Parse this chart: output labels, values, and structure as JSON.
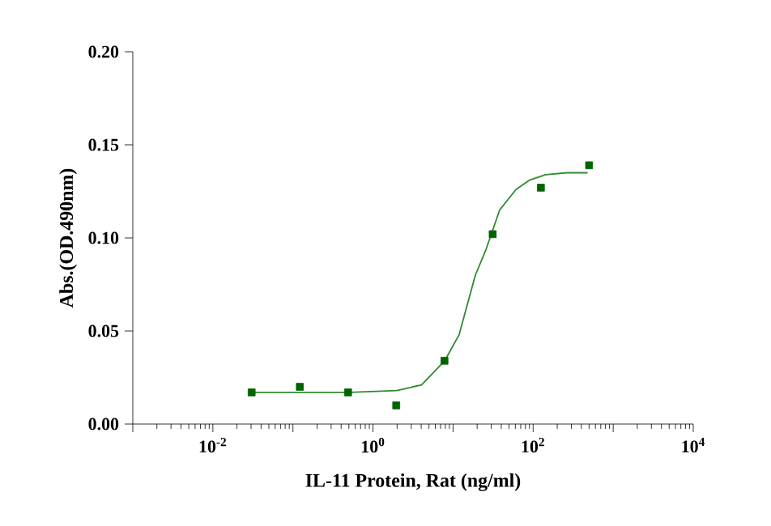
{
  "chart_data": {
    "type": "scatter",
    "xlabel": "IL-11 Protein, Rat  (ng/ml)",
    "ylabel": "Abs.(OD.490nm)",
    "log": "x",
    "marker": "square",
    "xlim": [
      0.001,
      10000
    ],
    "xticks": [
      {
        "value": 0.001,
        "label": null
      },
      {
        "value": 0.01,
        "label": "10$^{-2}$"
      },
      {
        "value": 0.1,
        "label": null
      },
      {
        "value": 1,
        "label": "10$^{0}$"
      },
      {
        "value": 10,
        "label": null
      },
      {
        "value": 100,
        "label": "10$^{2}$"
      },
      {
        "value": 1000,
        "label": null
      },
      {
        "value": 10000,
        "label": "10$^{4}$"
      }
    ],
    "ylim": [
      0,
      0.2
    ],
    "yticks": [
      {
        "value": 0,
        "label": "0.00"
      },
      {
        "value": 0.05,
        "label": "0.05"
      },
      {
        "value": 0.1,
        "label": "0.10"
      },
      {
        "value": 0.15,
        "label": "0.15"
      },
      {
        "value": 0.2,
        "label": "0.20"
      }
    ],
    "series": [
      {
        "color": "#006400",
        "x": [
          0.0305,
          0.122,
          0.488,
          1.95,
          7.81,
          31.25,
          125,
          500
        ],
        "values": [
          0.017,
          0.02,
          0.017,
          0.01,
          0.034,
          0.102,
          0.127,
          0.139
        ]
      },
      {
        "type": "line",
        "marker": "none",
        "color": "#2e8b2e",
        "x": [
          0.032,
          0.506,
          1.98,
          4.04,
          7.87,
          11.9,
          19.0,
          25.9,
          38.2,
          61.0,
          89.7,
          143,
          265,
          479
        ],
        "values": [
          0.017,
          0.017,
          0.018,
          0.021,
          0.034,
          0.048,
          0.08,
          0.094,
          0.115,
          0.126,
          0.131,
          0.134,
          0.135,
          0.135
        ]
      }
    ]
  }
}
